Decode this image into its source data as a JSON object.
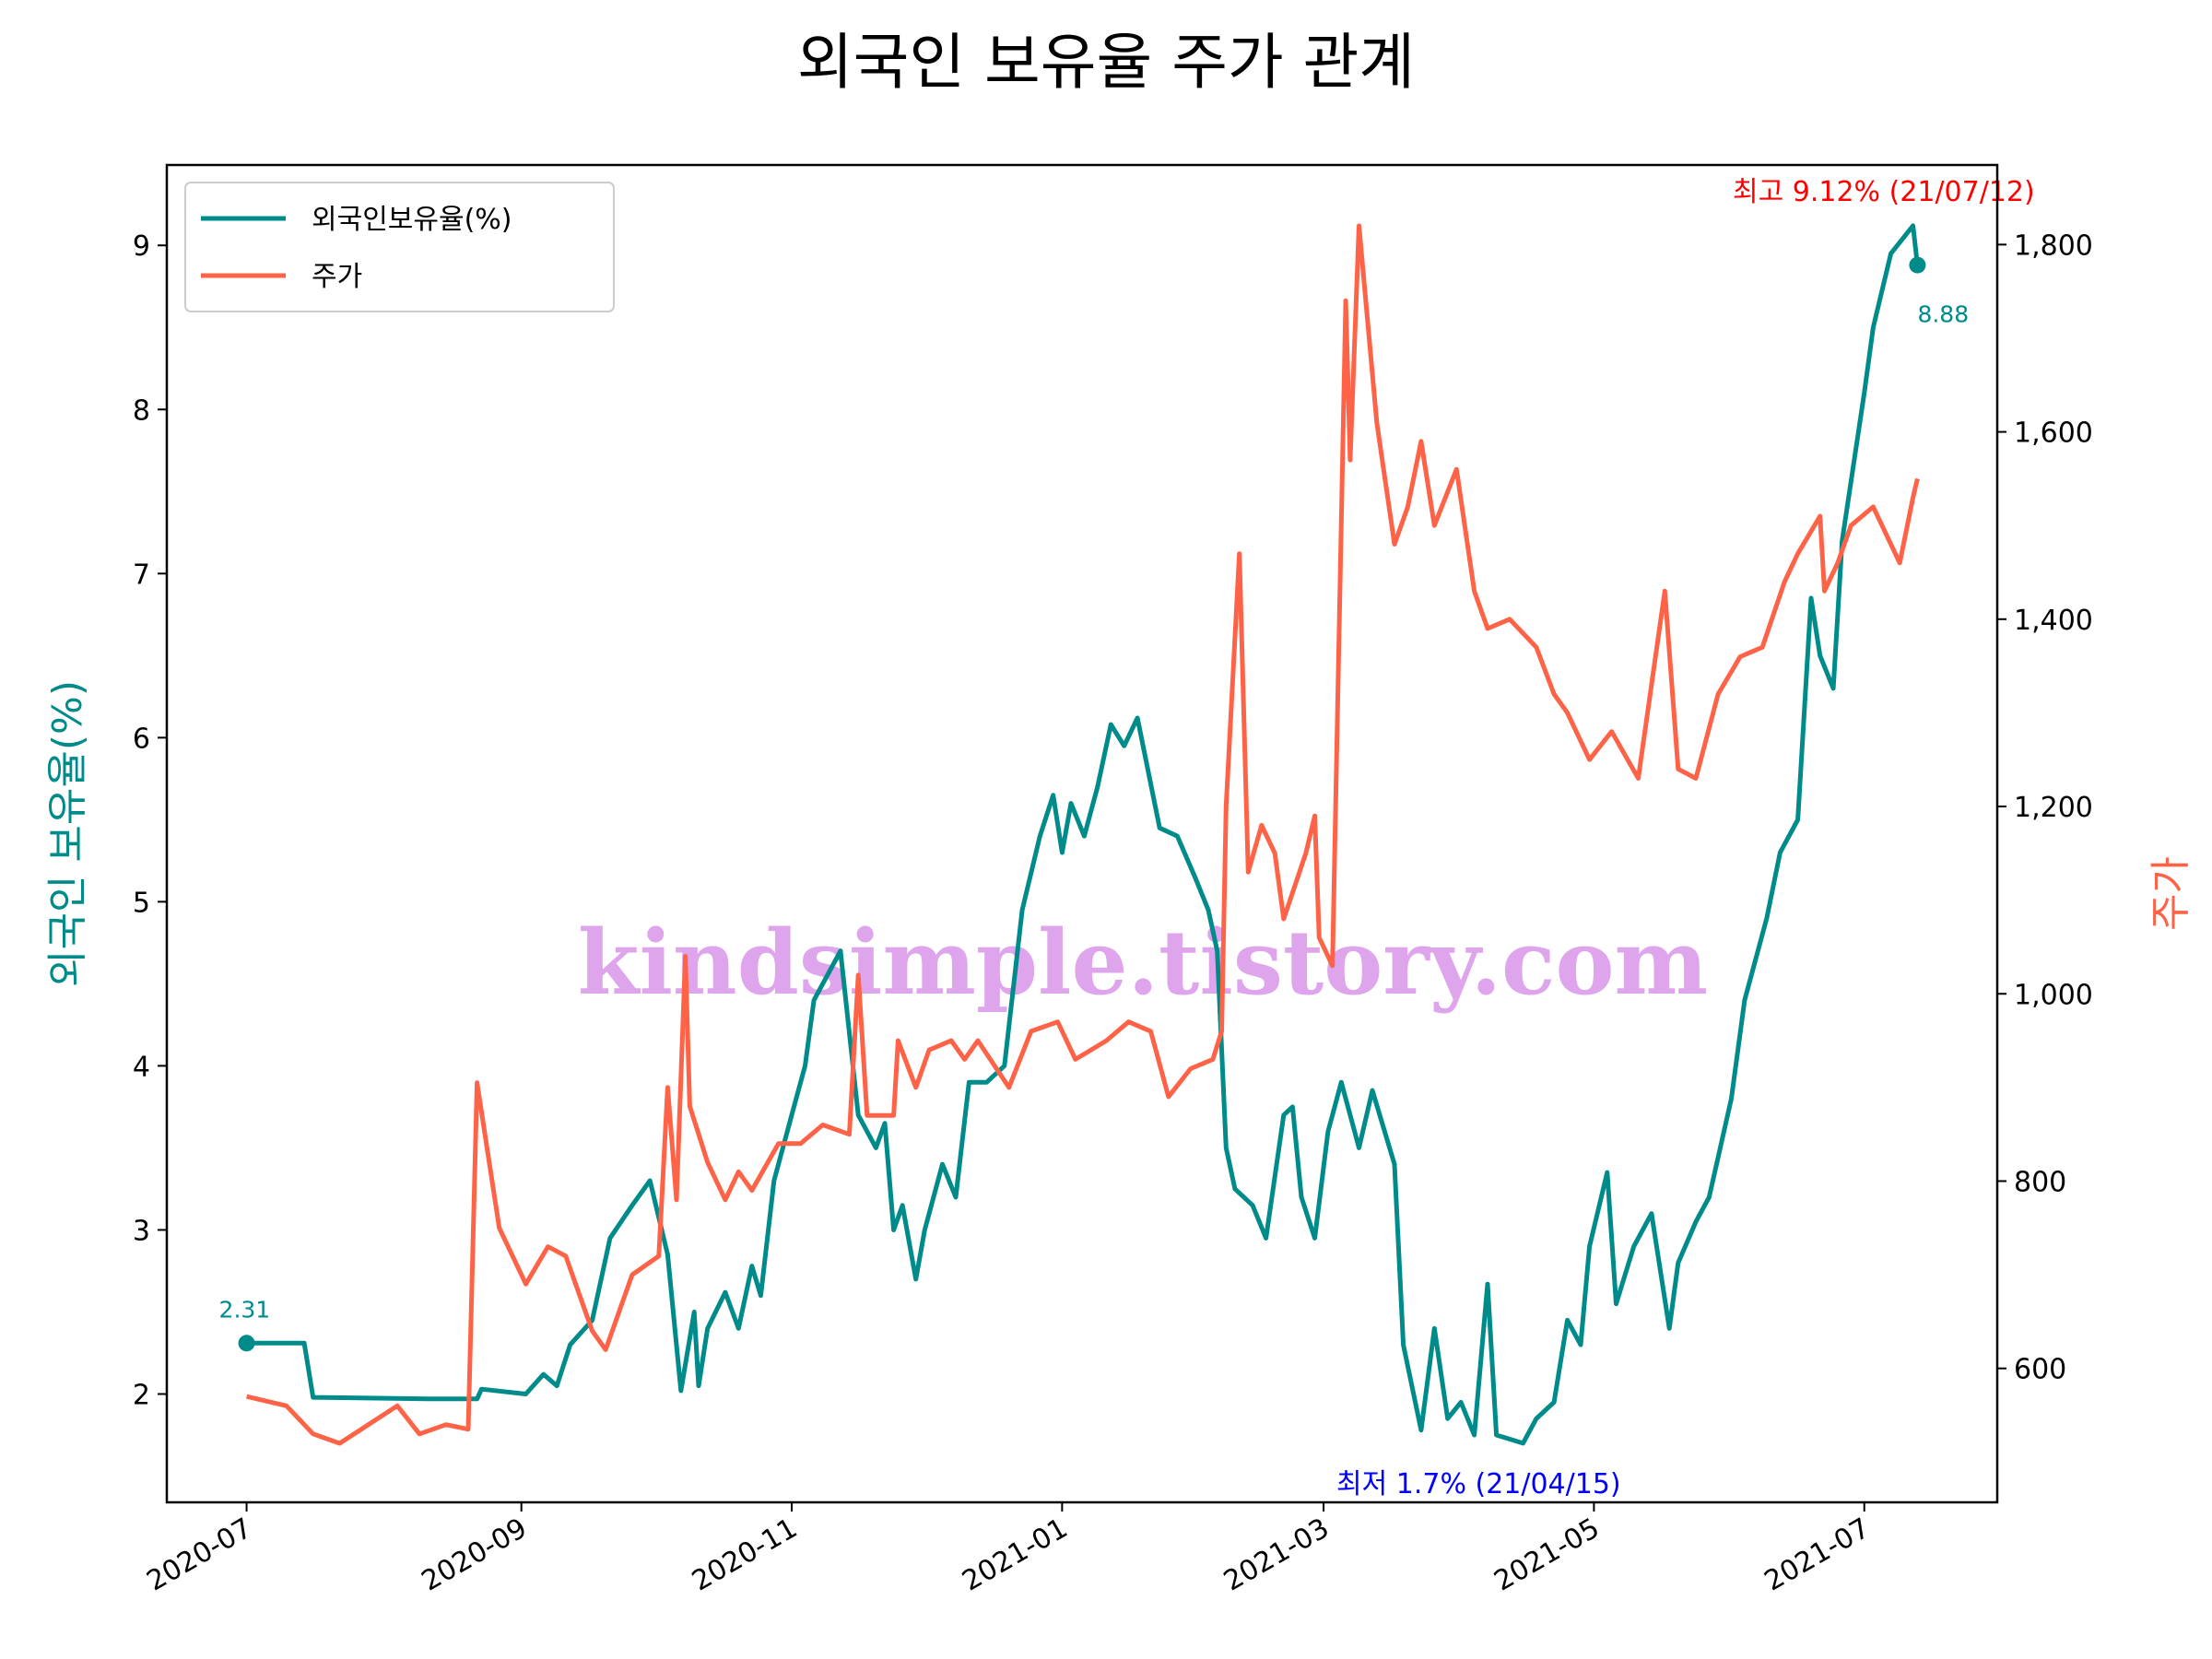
{
  "chart_data": {
    "type": "line",
    "title": "외국인 보유율 주가 관계",
    "ylabel": "외국인 보유율(%)",
    "y2label": "주가",
    "watermark": "kindsimple.tistory.com",
    "legend": "upper left",
    "xlim": [
      "2020-06-13",
      "2021-07-31"
    ],
    "xticks": [
      {
        "value": "2020-07-01",
        "label": "2020-07"
      },
      {
        "value": "2020-09-01",
        "label": "2020-09"
      },
      {
        "value": "2020-11-01",
        "label": "2020-11"
      },
      {
        "value": "2021-01-01",
        "label": "2021-01"
      },
      {
        "value": "2021-03-01",
        "label": "2021-03"
      },
      {
        "value": "2021-05-01",
        "label": "2021-05"
      },
      {
        "value": "2021-07-01",
        "label": "2021-07"
      }
    ],
    "ylim": [
      1.34,
      9.49
    ],
    "yticks": [
      2,
      3,
      4,
      5,
      6,
      7,
      8,
      9
    ],
    "y2lim": [
      457,
      1885
    ],
    "y2ticks": [
      600,
      800,
      {
        "value": 1000,
        "label": "1,000"
      },
      {
        "value": 1200,
        "label": "1,200"
      },
      {
        "value": 1400,
        "label": "1,400"
      },
      {
        "value": 1600,
        "label": "1,600"
      },
      {
        "value": 1800,
        "label": "1,800"
      }
    ],
    "series": [
      {
        "name": "외국인보유율(%)",
        "color": "#008b8b",
        "axis": "y",
        "x": [
          "2020-07-01",
          "2020-07-14",
          "2020-07-16",
          "2020-08-11",
          "2020-08-22",
          "2020-08-23",
          "2020-09-02",
          "2020-09-06",
          "2020-09-09",
          "2020-09-12",
          "2020-09-17",
          "2020-09-21",
          "2020-09-26",
          "2020-09-30",
          "2020-10-04",
          "2020-10-07",
          "2020-10-10",
          "2020-10-11",
          "2020-10-13",
          "2020-10-17",
          "2020-10-20",
          "2020-10-23",
          "2020-10-25",
          "2020-10-28",
          "2020-11-01",
          "2020-11-04",
          "2020-11-06",
          "2020-11-12",
          "2020-11-16",
          "2020-11-20",
          "2020-11-22",
          "2020-11-24",
          "2020-11-26",
          "2020-11-29",
          "2020-12-01",
          "2020-12-05",
          "2020-12-08",
          "2020-12-11",
          "2020-12-15",
          "2020-12-19",
          "2020-12-23",
          "2020-12-27",
          "2020-12-30",
          "2021-01-01",
          "2021-01-03",
          "2021-01-06",
          "2021-01-09",
          "2021-01-12",
          "2021-01-15",
          "2021-01-18",
          "2021-01-23",
          "2021-01-27",
          "2021-01-31",
          "2021-02-03",
          "2021-02-05",
          "2021-02-07",
          "2021-02-09",
          "2021-02-13",
          "2021-02-16",
          "2021-02-20",
          "2021-02-22",
          "2021-02-24",
          "2021-02-27",
          "2021-03-02",
          "2021-03-05",
          "2021-03-09",
          "2021-03-12",
          "2021-03-17",
          "2021-03-19",
          "2021-03-23",
          "2021-03-26",
          "2021-03-29",
          "2021-04-01",
          "2021-04-04",
          "2021-04-07",
          "2021-04-09",
          "2021-04-15",
          "2021-04-18",
          "2021-04-22",
          "2021-04-25",
          "2021-04-28",
          "2021-04-30",
          "2021-05-04",
          "2021-05-06",
          "2021-05-10",
          "2021-05-14",
          "2021-05-18",
          "2021-05-20",
          "2021-05-24",
          "2021-05-27",
          "2021-06-01",
          "2021-06-04",
          "2021-06-09",
          "2021-06-12",
          "2021-06-16",
          "2021-06-19",
          "2021-06-21",
          "2021-06-24",
          "2021-06-26",
          "2021-07-01",
          "2021-07-03",
          "2021-07-07",
          "2021-07-12",
          "2021-07-13"
        ],
        "values": [
          2.31,
          2.31,
          1.98,
          1.97,
          1.97,
          2.03,
          2.0,
          2.12,
          2.05,
          2.3,
          2.45,
          2.95,
          3.15,
          3.3,
          2.85,
          2.02,
          2.5,
          2.05,
          2.4,
          2.62,
          2.4,
          2.78,
          2.6,
          3.3,
          3.7,
          4.0,
          4.4,
          4.7,
          3.7,
          3.5,
          3.65,
          3.0,
          3.15,
          2.7,
          3.0,
          3.4,
          3.2,
          3.9,
          3.9,
          4.0,
          4.95,
          5.4,
          5.65,
          5.3,
          5.6,
          5.4,
          5.7,
          6.08,
          5.95,
          6.12,
          5.45,
          5.4,
          5.15,
          4.95,
          4.7,
          3.5,
          3.25,
          3.15,
          2.95,
          3.7,
          3.75,
          3.2,
          2.95,
          3.6,
          3.9,
          3.5,
          3.85,
          3.4,
          2.3,
          1.78,
          2.4,
          1.85,
          1.95,
          1.75,
          2.67,
          1.75,
          1.7,
          1.85,
          1.95,
          2.45,
          2.3,
          2.9,
          3.35,
          2.55,
          2.9,
          3.1,
          2.4,
          2.8,
          3.05,
          3.2,
          3.8,
          4.4,
          4.9,
          5.3,
          5.5,
          6.85,
          6.5,
          6.3,
          7.2,
          8.1,
          8.5,
          8.95,
          9.12,
          8.88
        ]
      },
      {
        "name": "주가",
        "color": "#ff6347",
        "axis": "y2",
        "x": [
          "2020-07-01",
          "2020-07-10",
          "2020-07-16",
          "2020-07-22",
          "2020-08-04",
          "2020-08-09",
          "2020-08-15",
          "2020-08-20",
          "2020-08-22",
          "2020-08-27",
          "2020-09-02",
          "2020-09-07",
          "2020-09-11",
          "2020-09-17",
          "2020-09-20",
          "2020-09-26",
          "2020-10-02",
          "2020-10-04",
          "2020-10-06",
          "2020-10-08",
          "2020-10-09",
          "2020-10-13",
          "2020-10-17",
          "2020-10-20",
          "2020-10-23",
          "2020-10-29",
          "2020-11-03",
          "2020-11-08",
          "2020-11-14",
          "2020-11-16",
          "2020-11-18",
          "2020-11-24",
          "2020-11-25",
          "2020-11-29",
          "2020-12-02",
          "2020-12-07",
          "2020-12-10",
          "2020-12-13",
          "2020-12-20",
          "2020-12-25",
          "2020-12-31",
          "2021-01-04",
          "2021-01-11",
          "2021-01-16",
          "2021-01-21",
          "2021-01-25",
          "2021-01-30",
          "2021-02-04",
          "2021-02-06",
          "2021-02-07",
          "2021-02-10",
          "2021-02-12",
          "2021-02-15",
          "2021-02-18",
          "2021-02-20",
          "2021-02-25",
          "2021-02-27",
          "2021-02-28",
          "2021-03-03",
          "2021-03-06",
          "2021-03-07",
          "2021-03-09",
          "2021-03-13",
          "2021-03-17",
          "2021-03-20",
          "2021-03-23",
          "2021-03-26",
          "2021-03-31",
          "2021-04-04",
          "2021-04-07",
          "2021-04-12",
          "2021-04-18",
          "2021-04-22",
          "2021-04-25",
          "2021-04-30",
          "2021-05-05",
          "2021-05-11",
          "2021-05-17",
          "2021-05-20",
          "2021-05-24",
          "2021-05-29",
          "2021-06-03",
          "2021-06-08",
          "2021-06-13",
          "2021-06-16",
          "2021-06-21",
          "2021-06-22",
          "2021-06-25",
          "2021-06-28",
          "2021-07-03",
          "2021-07-09",
          "2021-07-12",
          "2021-07-13"
        ],
        "values": [
          570,
          560,
          530,
          520,
          560,
          530,
          540,
          535,
          905,
          750,
          690,
          730,
          720,
          640,
          620,
          700,
          720,
          900,
          780,
          1040,
          880,
          820,
          780,
          810,
          790,
          840,
          840,
          860,
          850,
          1020,
          870,
          870,
          950,
          900,
          940,
          950,
          930,
          950,
          900,
          960,
          970,
          930,
          950,
          970,
          960,
          890,
          920,
          930,
          960,
          1200,
          1470,
          1130,
          1180,
          1150,
          1080,
          1150,
          1190,
          1060,
          1030,
          1740,
          1570,
          1820,
          1610,
          1480,
          1520,
          1590,
          1500,
          1560,
          1430,
          1390,
          1400,
          1370,
          1320,
          1300,
          1250,
          1280,
          1230,
          1430,
          1240,
          1230,
          1320,
          1360,
          1370,
          1440,
          1470,
          1510,
          1430,
          1460,
          1500,
          1520,
          1460,
          1530,
          1550
        ]
      }
    ],
    "annotations": [
      "2.31",
      "8.88",
      "최고 9.12% (21/07/12)",
      "최저 1.7% (21/04/15)"
    ]
  }
}
